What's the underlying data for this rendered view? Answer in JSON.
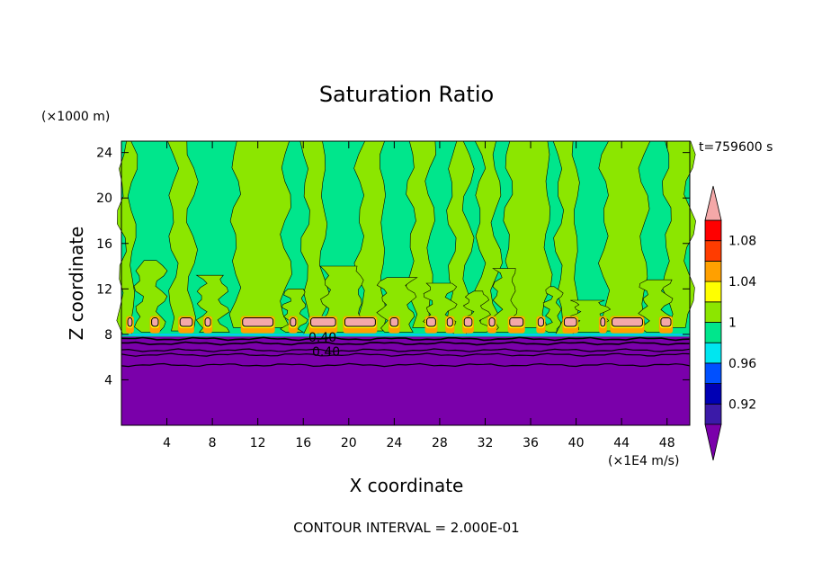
{
  "chart_data": {
    "type": "heatmap",
    "title": "Saturation Ratio",
    "xlabel": "X coordinate",
    "ylabel": "Z coordinate",
    "x_unit": "(×1E4 m/s)",
    "y_unit": "(×1000 m)",
    "time_label": "t=759600 s",
    "footer": "CONTOUR INTERVAL = 2.000E-01",
    "xlim": [
      0,
      50
    ],
    "ylim": [
      0,
      25
    ],
    "x_ticks": [
      "4",
      "8",
      "12",
      "16",
      "20",
      "24",
      "28",
      "32",
      "36",
      "40",
      "44",
      "48"
    ],
    "x_tick_values": [
      4,
      8,
      12,
      16,
      20,
      24,
      28,
      32,
      36,
      40,
      44,
      48
    ],
    "y_ticks": [
      "4",
      "8",
      "12",
      "16",
      "20",
      "24"
    ],
    "y_tick_values": [
      4,
      8,
      12,
      16,
      20,
      24
    ],
    "colorbar": {
      "labels": [
        "1.08",
        "1.04",
        "1",
        "0.96",
        "0.92"
      ],
      "label_values": [
        1.08,
        1.04,
        1.0,
        0.96,
        0.92
      ],
      "levels": [
        0.9,
        0.92,
        0.94,
        0.96,
        0.98,
        1.0,
        1.02,
        1.04,
        1.06,
        1.08,
        1.1
      ],
      "colors": [
        "#7a00aa",
        "#3b1aa8",
        "#0000b4",
        "#0050ff",
        "#00e6f0",
        "#00e68c",
        "#8ce600",
        "#ffff00",
        "#ffa000",
        "#ff3c00",
        "#ff0000",
        "#f4a8a8"
      ]
    },
    "contour_labels": [
      "0.40",
      "0.40"
    ],
    "layers": [
      {
        "level": "<0.90",
        "z_top": 7.8,
        "color": "#7a00aa"
      },
      {
        "level": "0.98-1.00",
        "z_range": [
          8,
          25
        ],
        "color": "#00e68c"
      },
      {
        "level": "1.00-1.02",
        "z_range": [
          9,
          25
        ],
        "color": "#8ce600"
      },
      {
        "level": ">1.10",
        "z_range": [
          8,
          9.5
        ],
        "color": "#f4a8a8"
      }
    ],
    "columns_1_00_plus": [
      [
        0,
        1
      ],
      [
        4.5,
        6.2
      ],
      [
        10,
        14.5
      ],
      [
        16.2,
        17.8
      ],
      [
        21,
        23
      ],
      [
        25.5,
        27.2
      ],
      [
        29,
        30.5
      ],
      [
        31.5,
        33
      ],
      [
        34,
        37.5
      ],
      [
        38.5,
        40
      ],
      [
        42.5,
        46
      ],
      [
        48,
        50
      ]
    ],
    "pink_cells": [
      [
        0.4,
        1.1
      ],
      [
        2.5,
        3.4
      ],
      [
        5.0,
        6.4
      ],
      [
        7.2,
        8.0
      ],
      [
        10.5,
        13.5
      ],
      [
        14.7,
        15.5
      ],
      [
        16.5,
        19.0
      ],
      [
        19.5,
        22.5
      ],
      [
        23.5,
        24.5
      ],
      [
        26.7,
        27.8
      ],
      [
        28.5,
        29.3
      ],
      [
        30.0,
        31.0
      ],
      [
        32.2,
        33.0
      ],
      [
        34.0,
        35.5
      ],
      [
        36.5,
        37.3
      ],
      [
        38.8,
        40.2
      ],
      [
        42.0,
        42.7
      ],
      [
        43.0,
        46.0
      ],
      [
        47.3,
        48.5
      ]
    ]
  }
}
